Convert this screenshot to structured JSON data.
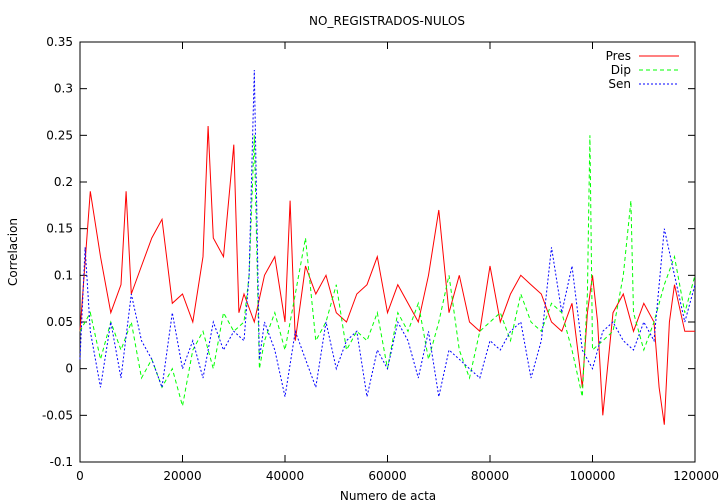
{
  "chart_data": {
    "type": "line",
    "title": "NO_REGISTRADOS-NULOS",
    "xlabel": "Numero de acta",
    "ylabel": "Correlacion",
    "xlim": [
      0,
      120000
    ],
    "ylim": [
      -0.1,
      0.35
    ],
    "x_ticks": [
      0,
      20000,
      40000,
      60000,
      80000,
      100000,
      120000
    ],
    "y_ticks": [
      -0.1,
      -0.05,
      0,
      0.05,
      0.1,
      0.15,
      0.2,
      0.25,
      0.3,
      0.35
    ],
    "x_tick_labels": [
      "0",
      "20000",
      "40000",
      "60000",
      "80000",
      "100000",
      "120000"
    ],
    "y_tick_labels": [
      "-0.1",
      "-0.05",
      "0",
      "0.05",
      "0.1",
      "0.15",
      "0.2",
      "0.25",
      "0.3",
      "0.35"
    ],
    "grid": false,
    "legend_position": "top-right",
    "series": [
      {
        "name": "Pres",
        "color": "#ff0000",
        "dash": "solid",
        "x": [
          0,
          2000,
          4000,
          6000,
          8000,
          9000,
          10000,
          12000,
          14000,
          16000,
          18000,
          20000,
          22000,
          24000,
          25000,
          26000,
          28000,
          30000,
          31000,
          32000,
          34000,
          36000,
          38000,
          40000,
          41000,
          42000,
          44000,
          46000,
          48000,
          50000,
          52000,
          54000,
          56000,
          58000,
          60000,
          62000,
          64000,
          66000,
          68000,
          70000,
          72000,
          74000,
          76000,
          78000,
          80000,
          82000,
          84000,
          86000,
          88000,
          90000,
          92000,
          94000,
          96000,
          98000,
          99000,
          100000,
          101000,
          102000,
          104000,
          106000,
          108000,
          110000,
          112000,
          113000,
          114000,
          115000,
          116000,
          118000,
          120000
        ],
        "y": [
          0.04,
          0.19,
          0.12,
          0.06,
          0.09,
          0.19,
          0.08,
          0.11,
          0.14,
          0.16,
          0.07,
          0.08,
          0.05,
          0.12,
          0.26,
          0.14,
          0.12,
          0.24,
          0.06,
          0.08,
          0.05,
          0.1,
          0.12,
          0.05,
          0.18,
          0.03,
          0.11,
          0.08,
          0.1,
          0.06,
          0.05,
          0.08,
          0.09,
          0.12,
          0.06,
          0.09,
          0.07,
          0.05,
          0.1,
          0.17,
          0.06,
          0.1,
          0.05,
          0.04,
          0.11,
          0.05,
          0.08,
          0.1,
          0.09,
          0.08,
          0.05,
          0.04,
          0.07,
          -0.02,
          0.06,
          0.1,
          0.05,
          -0.05,
          0.06,
          0.08,
          0.04,
          0.07,
          0.05,
          -0.02,
          -0.06,
          0.05,
          0.09,
          0.04,
          0.04
        ]
      },
      {
        "name": "Dip",
        "color": "#00ff00",
        "dash": "4,3",
        "x": [
          0,
          2000,
          4000,
          6000,
          8000,
          10000,
          12000,
          14000,
          16000,
          18000,
          20000,
          22000,
          24000,
          26000,
          28000,
          30000,
          32000,
          33000,
          34000,
          35000,
          36000,
          38000,
          40000,
          42000,
          44000,
          46000,
          48000,
          50000,
          52000,
          54000,
          56000,
          58000,
          60000,
          62000,
          64000,
          66000,
          68000,
          70000,
          72000,
          74000,
          76000,
          78000,
          80000,
          82000,
          84000,
          86000,
          88000,
          90000,
          92000,
          94000,
          96000,
          98000,
          99000,
          99500,
          100000,
          102000,
          104000,
          106000,
          107500,
          108000,
          110000,
          112000,
          114000,
          116000,
          118000,
          120000
        ],
        "y": [
          0.04,
          0.06,
          0.01,
          0.05,
          0.02,
          0.05,
          -0.01,
          0.01,
          -0.02,
          0.0,
          -0.04,
          0.02,
          0.04,
          0.0,
          0.06,
          0.04,
          0.05,
          0.1,
          0.25,
          0.0,
          0.03,
          0.06,
          0.02,
          0.08,
          0.14,
          0.03,
          0.05,
          0.09,
          0.02,
          0.04,
          0.03,
          0.06,
          0.0,
          0.06,
          0.04,
          0.07,
          0.01,
          0.05,
          0.1,
          0.02,
          -0.01,
          0.04,
          0.05,
          0.06,
          0.03,
          0.08,
          0.05,
          0.04,
          0.07,
          0.06,
          0.02,
          -0.03,
          0.08,
          0.25,
          0.02,
          0.03,
          0.04,
          0.1,
          0.18,
          0.06,
          0.02,
          0.05,
          0.09,
          0.12,
          0.06,
          0.1
        ]
      },
      {
        "name": "Sen",
        "color": "#0000ff",
        "dash": "2,2",
        "x": [
          0,
          1000,
          2000,
          4000,
          6000,
          8000,
          10000,
          12000,
          14000,
          16000,
          18000,
          20000,
          22000,
          24000,
          26000,
          28000,
          30000,
          32000,
          33000,
          34000,
          35000,
          36000,
          38000,
          40000,
          42000,
          44000,
          46000,
          48000,
          50000,
          52000,
          54000,
          56000,
          58000,
          60000,
          62000,
          64000,
          66000,
          68000,
          70000,
          72000,
          74000,
          76000,
          78000,
          80000,
          82000,
          84000,
          86000,
          88000,
          90000,
          92000,
          94000,
          96000,
          98000,
          100000,
          102000,
          104000,
          106000,
          108000,
          110000,
          112000,
          114000,
          116000,
          118000,
          120000
        ],
        "y": [
          0.01,
          0.13,
          0.04,
          -0.02,
          0.05,
          -0.01,
          0.08,
          0.03,
          0.01,
          -0.02,
          0.06,
          0.0,
          0.03,
          -0.01,
          0.05,
          0.02,
          0.04,
          0.03,
          0.1,
          0.32,
          0.01,
          0.05,
          0.02,
          -0.03,
          0.04,
          0.01,
          -0.02,
          0.05,
          0.0,
          0.03,
          0.04,
          -0.03,
          0.02,
          0.0,
          0.05,
          0.03,
          -0.01,
          0.04,
          -0.03,
          0.02,
          0.01,
          0.0,
          -0.01,
          0.03,
          0.02,
          0.04,
          0.05,
          -0.01,
          0.03,
          0.13,
          0.06,
          0.11,
          0.02,
          0.0,
          0.04,
          0.05,
          0.03,
          0.02,
          0.05,
          0.03,
          0.15,
          0.1,
          0.05,
          0.09
        ]
      }
    ]
  }
}
